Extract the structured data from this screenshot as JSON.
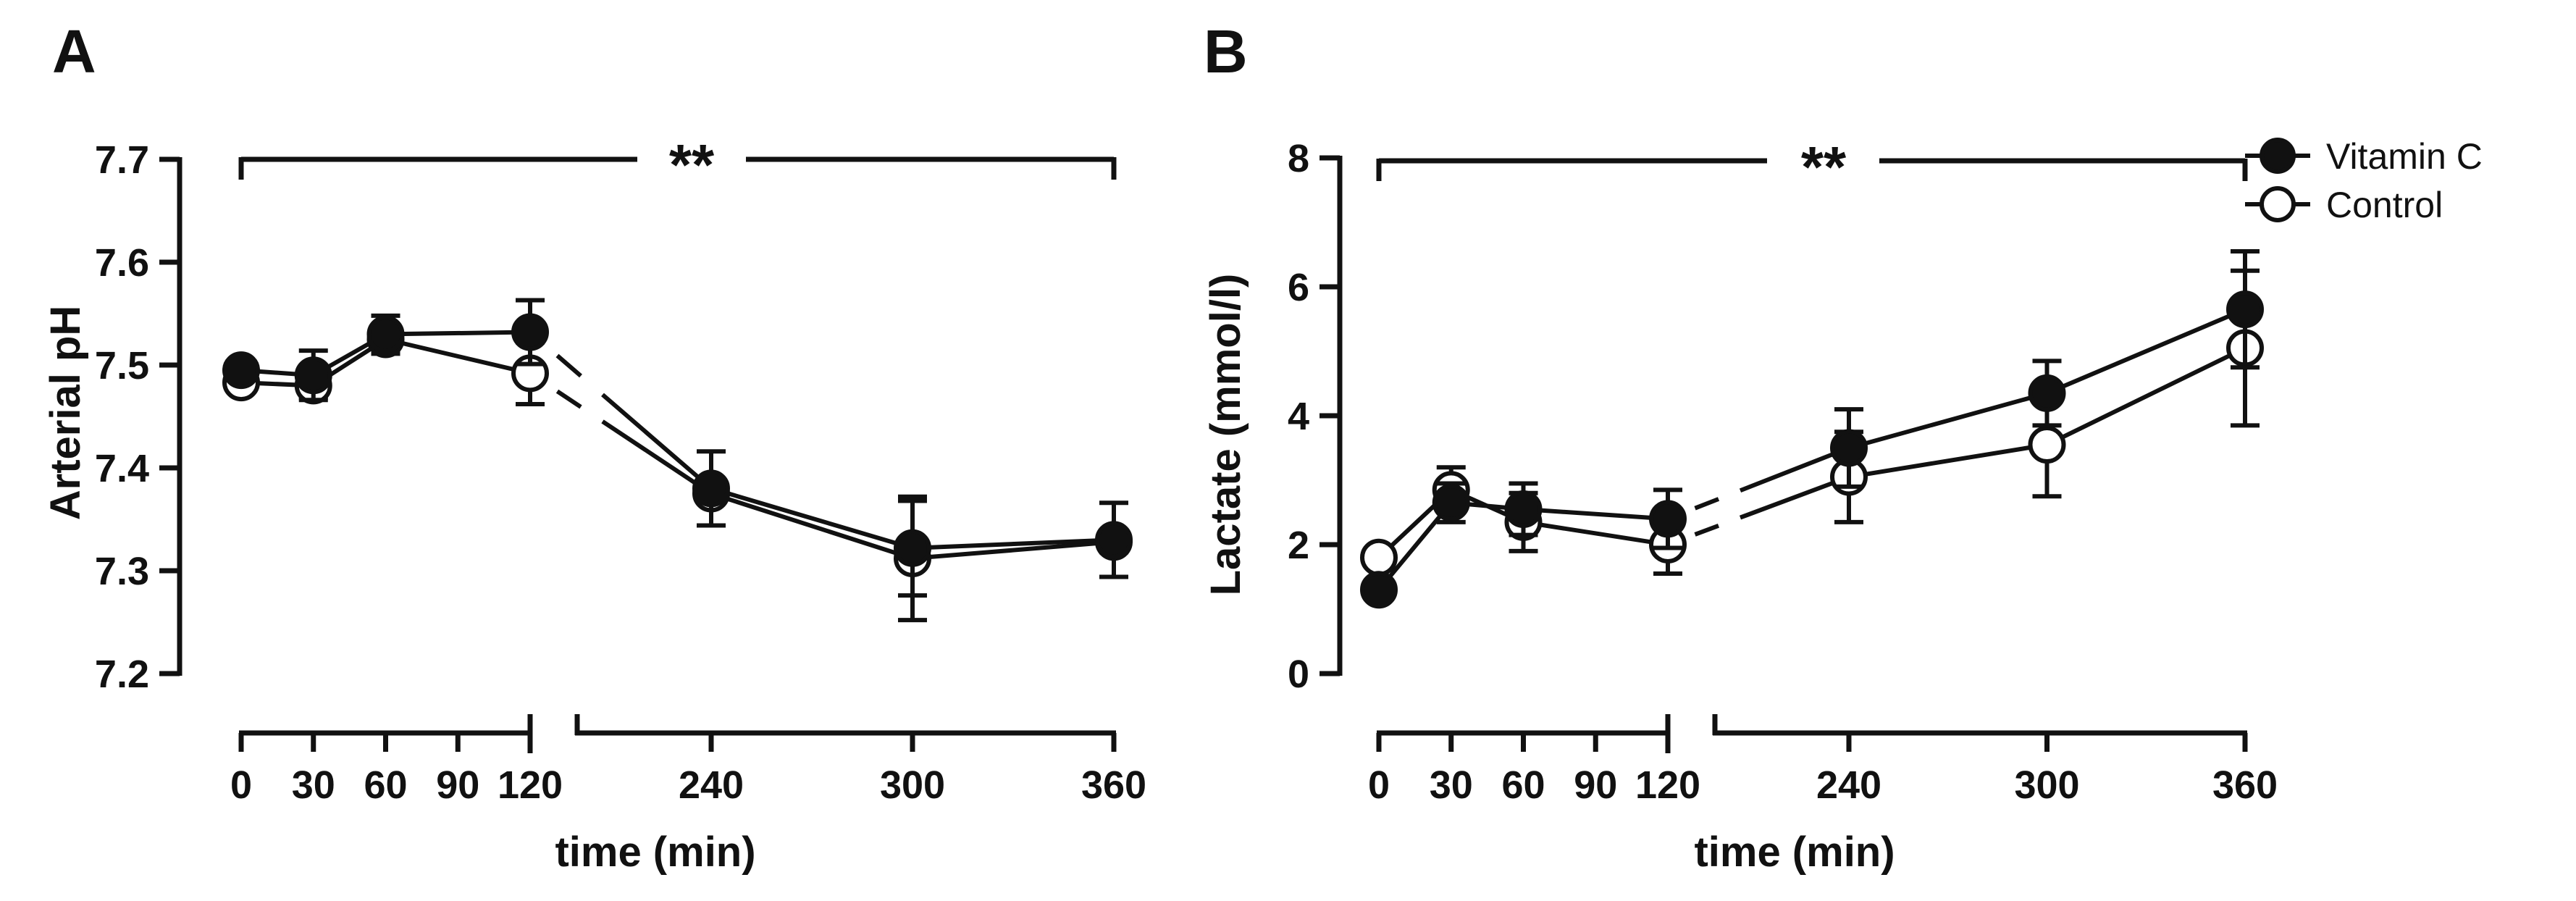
{
  "legend": [
    {
      "label": "Vitamin C",
      "marker": "filled"
    },
    {
      "label": "Control",
      "marker": "open"
    }
  ],
  "chart_data": [
    {
      "panel": "A",
      "type": "line",
      "xlabel": "time (min)",
      "ylabel": "Arterial pH",
      "ylim": [
        7.2,
        7.7
      ],
      "yticks": [
        "7.2",
        "7.3",
        "7.4",
        "7.5",
        "7.6",
        "7.7"
      ],
      "xticks": [
        "0",
        "30",
        "60",
        "90",
        "120",
        "240",
        "300",
        "360"
      ],
      "x_axis_break": "between 120 and 240",
      "significance": "**",
      "series": [
        {
          "name": "Vitamin C",
          "marker": "filled",
          "x": [
            0,
            30,
            60,
            120,
            240,
            300,
            360
          ],
          "y": [
            7.495,
            7.49,
            7.53,
            7.532,
            7.38,
            7.322,
            7.33
          ],
          "err": [
            0.006,
            0.024,
            0.018,
            0.031,
            0.036,
            0.046,
            0.036
          ]
        },
        {
          "name": "Control",
          "marker": "open",
          "x": [
            0,
            30,
            60,
            120,
            240,
            300,
            360
          ],
          "y": [
            7.483,
            7.48,
            7.525,
            7.492,
            7.375,
            7.312,
            7.328
          ],
          "err": [
            0.006,
            0.012,
            0.014,
            0.03,
            0.008,
            0.06,
            0.01
          ]
        }
      ]
    },
    {
      "panel": "B",
      "type": "line",
      "xlabel": "time (min)",
      "ylabel": "Lactate (mmol/l)",
      "ylim": [
        0,
        8
      ],
      "yticks": [
        "0",
        "2",
        "4",
        "6",
        "8"
      ],
      "xticks": [
        "0",
        "30",
        "60",
        "90",
        "120",
        "240",
        "300",
        "360"
      ],
      "x_axis_break": "between 120 and 240",
      "significance": "**",
      "series": [
        {
          "name": "Vitamin C",
          "marker": "filled",
          "x": [
            0,
            30,
            60,
            120,
            240,
            300,
            360
          ],
          "y": [
            1.3,
            2.65,
            2.55,
            2.4,
            3.5,
            4.35,
            5.65
          ],
          "err": [
            0.1,
            0.3,
            0.4,
            0.45,
            0.6,
            0.5,
            0.9
          ]
        },
        {
          "name": "Control",
          "marker": "open",
          "x": [
            0,
            30,
            60,
            120,
            240,
            300,
            360
          ],
          "y": [
            1.8,
            2.85,
            2.35,
            2.0,
            3.05,
            3.55,
            5.05
          ],
          "err": [
            0.1,
            0.35,
            0.45,
            0.45,
            0.7,
            0.8,
            1.2
          ]
        }
      ]
    }
  ]
}
